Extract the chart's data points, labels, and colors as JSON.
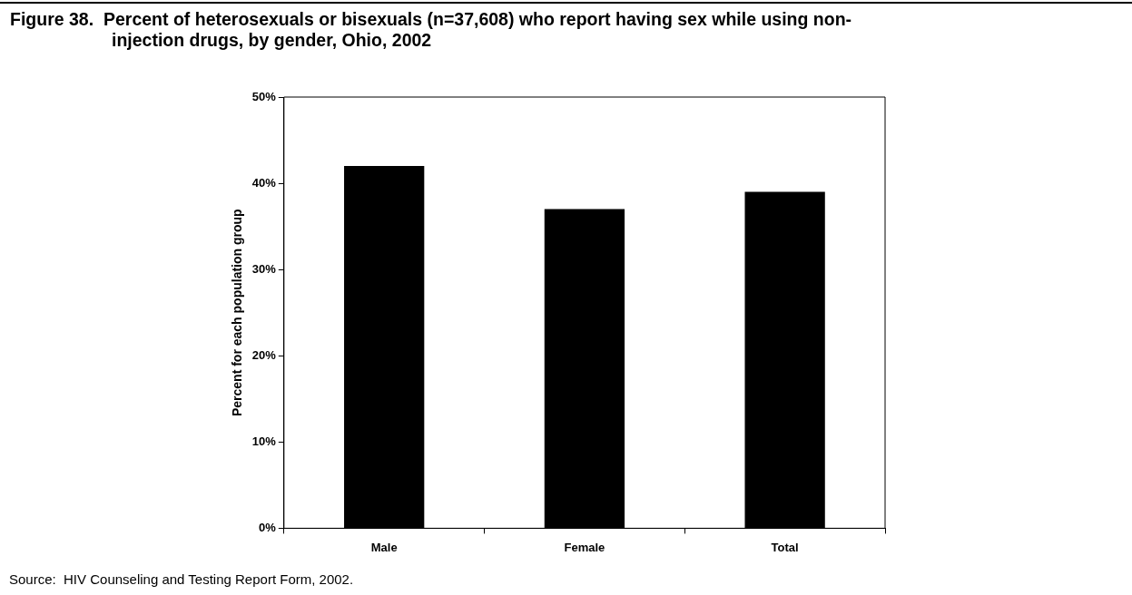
{
  "chart_data": {
    "type": "bar",
    "title": "Figure 38.  Percent of heterosexuals or bisexuals (n=37,608) who report having sex while using non-injection drugs, by gender, Ohio, 2002",
    "ylabel": "Percent for each population group",
    "categories": [
      "Male",
      "Female",
      "Total"
    ],
    "values": [
      42,
      37,
      39
    ],
    "color": "#000000",
    "ylim": [
      0,
      50
    ],
    "yticks": [
      {
        "value": 0,
        "label": "0%"
      },
      {
        "value": 10,
        "label": "10%"
      },
      {
        "value": 20,
        "label": "20%"
      },
      {
        "value": 30,
        "label": "30%"
      },
      {
        "value": 40,
        "label": "40%"
      },
      {
        "value": 50,
        "label": "50%"
      }
    ],
    "grid": false,
    "legend": false,
    "annotations": [
      "Source:  HIV Counseling and Testing Report Form, 2002."
    ]
  }
}
